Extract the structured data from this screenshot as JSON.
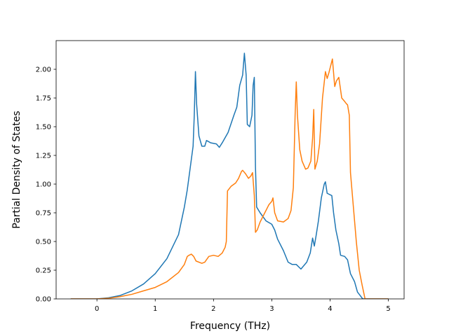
{
  "chart_data": {
    "type": "line",
    "title": "",
    "xlabel": "Frequency (THz)",
    "ylabel": "Partial Density of States",
    "xlim": [
      -0.7,
      5.27
    ],
    "ylim": [
      0.0,
      2.25
    ],
    "xticks": [
      0,
      1,
      2,
      3,
      4,
      5
    ],
    "xtick_labels": [
      "0",
      "1",
      "2",
      "3",
      "4",
      "5"
    ],
    "yticks": [
      0.0,
      0.25,
      0.5,
      0.75,
      1.0,
      1.25,
      1.5,
      1.75,
      2.0
    ],
    "ytick_labels": [
      "0.00",
      "0.25",
      "0.50",
      "0.75",
      "1.00",
      "1.25",
      "1.50",
      "1.75",
      "2.00"
    ],
    "grid": false,
    "colors": [
      "#1f77b4",
      "#ff7f0e"
    ],
    "series": [
      {
        "color": "#1f77b4",
        "points": [
          [
            -0.45,
            0
          ],
          [
            0,
            0
          ],
          [
            0.2,
            0.01
          ],
          [
            0.4,
            0.03
          ],
          [
            0.6,
            0.07
          ],
          [
            0.8,
            0.13
          ],
          [
            1.0,
            0.22
          ],
          [
            1.2,
            0.35
          ],
          [
            1.4,
            0.56
          ],
          [
            1.5,
            0.8
          ],
          [
            1.55,
            0.95
          ],
          [
            1.6,
            1.14
          ],
          [
            1.65,
            1.33
          ],
          [
            1.67,
            1.6
          ],
          [
            1.69,
            1.98
          ],
          [
            1.71,
            1.7
          ],
          [
            1.75,
            1.42
          ],
          [
            1.8,
            1.33
          ],
          [
            1.85,
            1.33
          ],
          [
            1.88,
            1.38
          ],
          [
            1.95,
            1.36
          ],
          [
            2.05,
            1.35
          ],
          [
            2.1,
            1.32
          ],
          [
            2.15,
            1.36
          ],
          [
            2.25,
            1.45
          ],
          [
            2.35,
            1.6
          ],
          [
            2.4,
            1.67
          ],
          [
            2.45,
            1.86
          ],
          [
            2.5,
            1.95
          ],
          [
            2.53,
            2.14
          ],
          [
            2.56,
            1.95
          ],
          [
            2.58,
            1.52
          ],
          [
            2.62,
            1.5
          ],
          [
            2.66,
            1.6
          ],
          [
            2.68,
            1.86
          ],
          [
            2.7,
            1.93
          ],
          [
            2.72,
            1.15
          ],
          [
            2.74,
            0.8
          ],
          [
            2.8,
            0.75
          ],
          [
            2.9,
            0.68
          ],
          [
            3.0,
            0.65
          ],
          [
            3.05,
            0.6
          ],
          [
            3.1,
            0.52
          ],
          [
            3.2,
            0.42
          ],
          [
            3.28,
            0.32
          ],
          [
            3.35,
            0.3
          ],
          [
            3.42,
            0.3
          ],
          [
            3.5,
            0.26
          ],
          [
            3.6,
            0.32
          ],
          [
            3.66,
            0.4
          ],
          [
            3.7,
            0.53
          ],
          [
            3.73,
            0.46
          ],
          [
            3.76,
            0.55
          ],
          [
            3.8,
            0.68
          ],
          [
            3.85,
            0.88
          ],
          [
            3.9,
            1.0
          ],
          [
            3.92,
            1.02
          ],
          [
            3.95,
            0.92
          ],
          [
            4.03,
            0.9
          ],
          [
            4.06,
            0.75
          ],
          [
            4.1,
            0.6
          ],
          [
            4.15,
            0.48
          ],
          [
            4.18,
            0.38
          ],
          [
            4.25,
            0.37
          ],
          [
            4.3,
            0.34
          ],
          [
            4.35,
            0.22
          ],
          [
            4.42,
            0.15
          ],
          [
            4.47,
            0.06
          ],
          [
            4.53,
            0.02
          ],
          [
            4.56,
            0
          ],
          [
            4.7,
            0
          ],
          [
            5.0,
            0
          ]
        ]
      },
      {
        "color": "#ff7f0e",
        "points": [
          [
            -0.45,
            0
          ],
          [
            0,
            0
          ],
          [
            0.2,
            0.005
          ],
          [
            0.4,
            0.02
          ],
          [
            0.6,
            0.04
          ],
          [
            0.8,
            0.07
          ],
          [
            1.0,
            0.1
          ],
          [
            1.2,
            0.15
          ],
          [
            1.4,
            0.23
          ],
          [
            1.5,
            0.3
          ],
          [
            1.55,
            0.37
          ],
          [
            1.58,
            0.38
          ],
          [
            1.62,
            0.39
          ],
          [
            1.66,
            0.37
          ],
          [
            1.7,
            0.33
          ],
          [
            1.8,
            0.31
          ],
          [
            1.85,
            0.32
          ],
          [
            1.92,
            0.37
          ],
          [
            2.0,
            0.38
          ],
          [
            2.08,
            0.37
          ],
          [
            2.15,
            0.4
          ],
          [
            2.2,
            0.45
          ],
          [
            2.22,
            0.5
          ],
          [
            2.24,
            0.94
          ],
          [
            2.3,
            0.98
          ],
          [
            2.38,
            1.01
          ],
          [
            2.43,
            1.05
          ],
          [
            2.48,
            1.11
          ],
          [
            2.5,
            1.12
          ],
          [
            2.55,
            1.09
          ],
          [
            2.6,
            1.05
          ],
          [
            2.64,
            1.07
          ],
          [
            2.67,
            1.1
          ],
          [
            2.7,
            0.9
          ],
          [
            2.72,
            0.58
          ],
          [
            2.75,
            0.6
          ],
          [
            2.8,
            0.67
          ],
          [
            2.88,
            0.75
          ],
          [
            2.95,
            0.82
          ],
          [
            3.0,
            0.85
          ],
          [
            3.02,
            0.88
          ],
          [
            3.05,
            0.75
          ],
          [
            3.1,
            0.68
          ],
          [
            3.2,
            0.67
          ],
          [
            3.28,
            0.7
          ],
          [
            3.33,
            0.77
          ],
          [
            3.37,
            0.97
          ],
          [
            3.4,
            1.6
          ],
          [
            3.42,
            1.89
          ],
          [
            3.44,
            1.6
          ],
          [
            3.48,
            1.3
          ],
          [
            3.52,
            1.2
          ],
          [
            3.58,
            1.13
          ],
          [
            3.62,
            1.14
          ],
          [
            3.67,
            1.2
          ],
          [
            3.7,
            1.4
          ],
          [
            3.72,
            1.65
          ],
          [
            3.74,
            1.13
          ],
          [
            3.78,
            1.2
          ],
          [
            3.82,
            1.35
          ],
          [
            3.87,
            1.75
          ],
          [
            3.92,
            1.98
          ],
          [
            3.95,
            1.92
          ],
          [
            3.98,
            1.97
          ],
          [
            4.02,
            2.05
          ],
          [
            4.04,
            2.09
          ],
          [
            4.08,
            1.85
          ],
          [
            4.11,
            1.9
          ],
          [
            4.15,
            1.93
          ],
          [
            4.2,
            1.75
          ],
          [
            4.25,
            1.72
          ],
          [
            4.28,
            1.7
          ],
          [
            4.3,
            1.69
          ],
          [
            4.33,
            1.6
          ],
          [
            4.35,
            1.1
          ],
          [
            4.4,
            0.8
          ],
          [
            4.45,
            0.5
          ],
          [
            4.5,
            0.25
          ],
          [
            4.55,
            0.12
          ],
          [
            4.6,
            0
          ],
          [
            4.7,
            0
          ],
          [
            5.0,
            0
          ]
        ]
      }
    ]
  }
}
